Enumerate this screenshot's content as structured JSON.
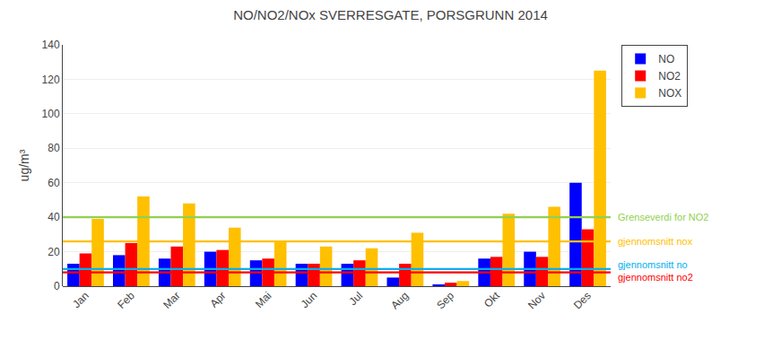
{
  "chart_data": {
    "type": "bar",
    "title": "NO/NO2/NOx SVERRESGATE, PORSGRUNN 2014",
    "ylabel": "ug/m³",
    "categories": [
      "Jan",
      "Feb",
      "Mar",
      "Apr",
      "Mai",
      "Jun",
      "Jul",
      "Aug",
      "Sep",
      "Okt",
      "Nov",
      "Des"
    ],
    "series": [
      {
        "name": "NO",
        "color": "#0000FF",
        "values": [
          13,
          18,
          16,
          20,
          15,
          13,
          13,
          5,
          1,
          16,
          20,
          60
        ]
      },
      {
        "name": "NO2",
        "color": "#FF0000",
        "values": [
          19,
          25,
          23,
          21,
          16,
          13,
          15,
          13,
          2,
          17,
          17,
          33
        ]
      },
      {
        "name": "NOX",
        "color": "#FFC000",
        "values": [
          39,
          52,
          48,
          34,
          26,
          23,
          22,
          31,
          3,
          42,
          46,
          125
        ]
      }
    ],
    "reference_lines": [
      {
        "value": 40,
        "label": "Grenseverdi for NO2",
        "color": "#92D050"
      },
      {
        "value": 26,
        "label": "gjennomsnitt nox",
        "color": "#FFC000"
      },
      {
        "value": 10,
        "label": "gjennomsnitt no",
        "color": "#00B0F0"
      },
      {
        "value": 8,
        "label": "gjennomsnitt no2",
        "color": "#FF0000"
      }
    ],
    "ylim": [
      0,
      140
    ],
    "yticks": [
      0,
      20,
      40,
      60,
      80,
      100,
      120,
      140
    ],
    "grid": true,
    "legend": "right"
  }
}
